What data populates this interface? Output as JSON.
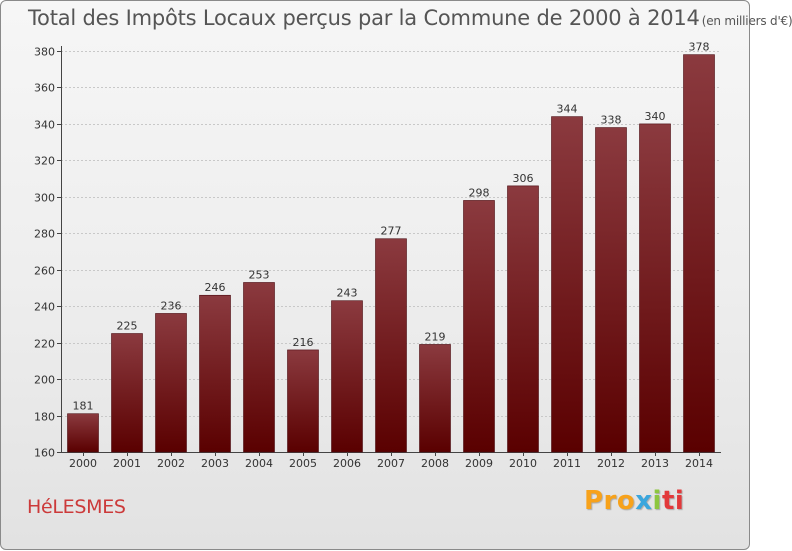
{
  "title": "Total des Impôts Locaux perçus par la Commune de 2000 à 2014",
  "title_unit": "(en milliers d'€)",
  "commune": "HéLESMES",
  "logo": {
    "part1": "Pro",
    "part2": "x",
    "part3": "i",
    "part4": "ti"
  },
  "colors": {
    "bar_top": "#8b3a3f",
    "bar_bottom": "#5a0000",
    "bar_edge": "#4a0a10",
    "text": "#555555",
    "commune": "#cc3a3a"
  },
  "chart_data": {
    "type": "bar",
    "title": "Total des Impôts Locaux perçus par la Commune de 2000 à 2014 (en milliers d'€)",
    "xlabel": "",
    "ylabel": "",
    "categories": [
      "2000",
      "2001",
      "2002",
      "2003",
      "2004",
      "2005",
      "2006",
      "2007",
      "2008",
      "2009",
      "2010",
      "2011",
      "2012",
      "2013",
      "2014"
    ],
    "values": [
      181,
      225,
      236,
      246,
      253,
      216,
      243,
      277,
      219,
      298,
      306,
      344,
      338,
      340,
      378
    ],
    "ylim": [
      160,
      380
    ],
    "yticks": [
      160,
      180,
      200,
      220,
      240,
      260,
      280,
      300,
      320,
      340,
      360,
      380
    ],
    "grid": true
  }
}
